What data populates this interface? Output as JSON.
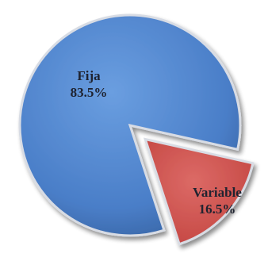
{
  "chart_data": {
    "type": "pie",
    "title": "",
    "slices": [
      {
        "label": "Fija",
        "value": 83.5,
        "value_label": "83.5%",
        "color": "#4a7ec8",
        "exploded": false
      },
      {
        "label": "Variable",
        "value": 16.5,
        "value_label": "16.5%",
        "color": "#cd4f4b",
        "exploded": true
      }
    ],
    "legend": "none",
    "style": "3d-bevel"
  }
}
